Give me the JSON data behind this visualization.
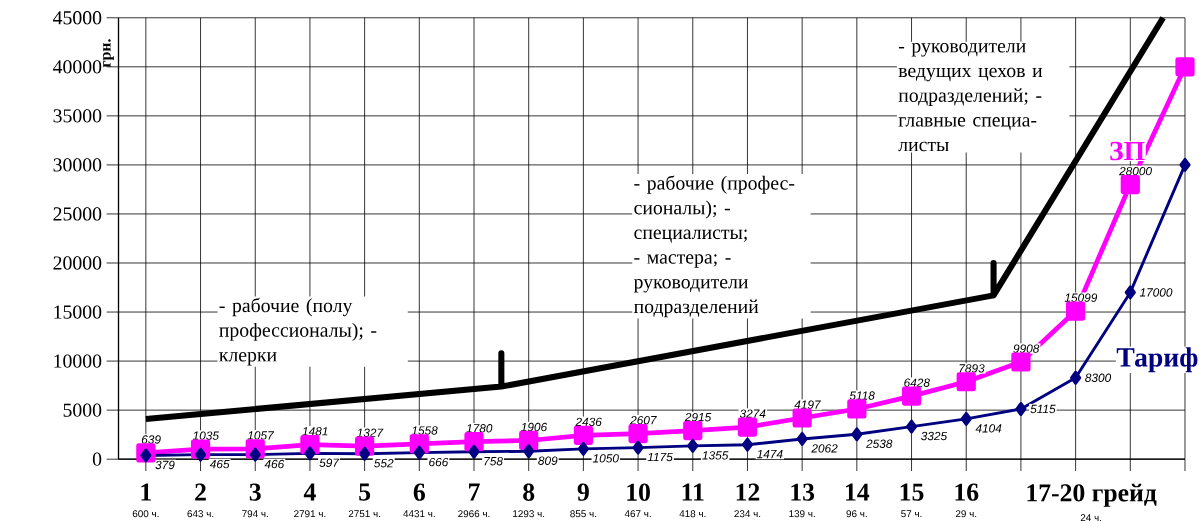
{
  "chart_data": {
    "type": "line",
    "ylabel": "грн.",
    "x": [
      1,
      2,
      3,
      4,
      5,
      6,
      7,
      8,
      9,
      10,
      11,
      12,
      13,
      14,
      15,
      16,
      17,
      18,
      19,
      20
    ],
    "xlim": [
      0.5,
      20
    ],
    "xticks": [
      {
        "value": 1,
        "label": "1"
      },
      {
        "value": 2,
        "label": "2"
      },
      {
        "value": 3,
        "label": "3"
      },
      {
        "value": 4,
        "label": "4"
      },
      {
        "value": 5,
        "label": "5"
      },
      {
        "value": 6,
        "label": "6"
      },
      {
        "value": 7,
        "label": "7"
      },
      {
        "value": 8,
        "label": "8"
      },
      {
        "value": 9,
        "label": "9"
      },
      {
        "value": 10,
        "label": "10"
      },
      {
        "value": 11,
        "label": "11"
      },
      {
        "value": 12,
        "label": "12"
      },
      {
        "value": 13,
        "label": "13"
      },
      {
        "value": 14,
        "label": "14"
      },
      {
        "value": 15,
        "label": "15"
      },
      {
        "value": 16,
        "label": "16"
      },
      {
        "value": 17,
        "label": null
      },
      {
        "value": 18,
        "label": null
      },
      {
        "value": 19,
        "label": null
      },
      {
        "value": 20,
        "label": null
      }
    ],
    "ylim": [
      0,
      45000
    ],
    "yticks": [
      0,
      5000,
      10000,
      15000,
      20000,
      25000,
      30000,
      35000,
      40000,
      45000
    ],
    "grid": true,
    "series": [
      {
        "name": "ЗП",
        "color": "#ff00ff",
        "marker": "square",
        "values": [
          639,
          1035,
          1057,
          1481,
          1327,
          1558,
          1780,
          1906,
          2436,
          2607,
          2915,
          3274,
          4197,
          5118,
          6428,
          7893,
          9908,
          15099,
          28000,
          40000
        ],
        "value_labels": [
          "639",
          "1035",
          "1057",
          "1481",
          "1327",
          "1558",
          "1780",
          "1906",
          "2436",
          "2607",
          "2915",
          "3274",
          "4197",
          "5118",
          "6428",
          "7893",
          "9908",
          "15099",
          "28000",
          null
        ]
      },
      {
        "name": "Тариф",
        "color": "#000080",
        "marker": "diamond",
        "values": [
          379,
          465,
          466,
          597,
          552,
          666,
          758,
          809,
          1050,
          1175,
          1355,
          1474,
          2062,
          2538,
          3325,
          4104,
          5115,
          8300,
          17000,
          30000
        ],
        "value_labels": [
          "379",
          "465",
          "466",
          "597",
          "552",
          "666",
          "758",
          "809",
          "1050",
          "1175",
          "1355",
          "1474",
          "2062",
          "2538",
          "3325",
          "4104",
          "5115",
          "8300",
          "17000",
          null
        ]
      },
      {
        "type": "line",
        "color": "#000000",
        "marker": "none",
        "x": [
          1,
          7.5,
          7.5,
          7.5,
          16.5,
          16.5,
          16.5,
          19.6
        ],
        "values": [
          4100,
          7400,
          10800,
          7400,
          16700,
          20000,
          16700,
          45000
        ]
      }
    ],
    "annotations": [
      "- рабочие (полу профессионалы); - клерки",
      "- рабочие (профес-сионалы); - специалисты; - мастера; - руководители подразделений",
      "- руководители ведущих цехов и подразделений; - главные специа-листы",
      "17-20 грейд",
      "600 ч.",
      "643 ч.",
      "794 ч.",
      "2791 ч.",
      "2751 ч.",
      "4431 ч.",
      "2966 ч.",
      "1293 ч.",
      "855 ч.",
      "467 ч.",
      "418 ч.",
      "234 ч.",
      "139 ч.",
      "96 ч.",
      "57 ч.",
      "29 ч.",
      "24 ч."
    ]
  }
}
